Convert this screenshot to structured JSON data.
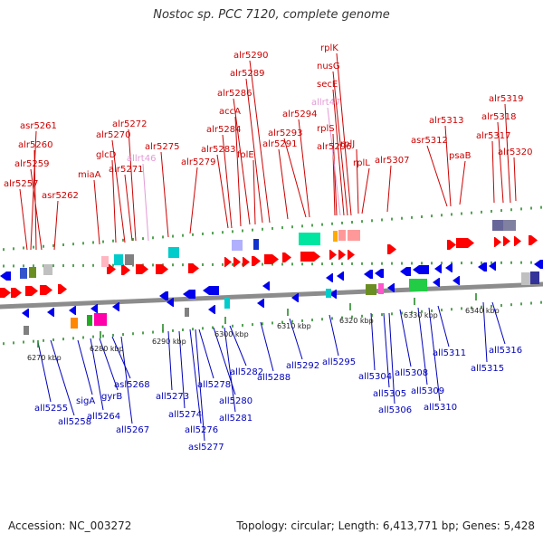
{
  "title": "Nostoc sp. PCC 7120, complete genome",
  "footer": {
    "accession": "Accession: NC_003272",
    "summary": "Topology: circular; Length: 6,413,771 bp; Genes: 5,428"
  },
  "colors": {
    "forward_label": "#cc0000",
    "forward_faded_label": "#e39ad6",
    "reverse_label": "#0000bb",
    "forward_arrow": "#ff0000",
    "reverse_arrow": "#0000ee",
    "axis": "#8c8c8c",
    "tick": "#2a8a2a"
  },
  "kbp_labels": [
    "6270 kbp",
    "6280 kbp",
    "6290 kbp",
    "6300 kbp",
    "6310 kbp",
    "6320 kbp",
    "6330 kbp",
    "6340 kbp"
  ],
  "top_labels": [
    "asr5261",
    "alr5260",
    "alr5259",
    "alr5257",
    "asr5262",
    "miaA",
    "glcD",
    "alr5270",
    "alr5272",
    "alr5271",
    "allrt46",
    "alr5275",
    "alr5279",
    "alr5283",
    "alr5284",
    "accA",
    "alr5286",
    "folE",
    "alr5289",
    "alr5290",
    "alr5291",
    "alr5293",
    "alr5294",
    "alr5296",
    "rplS",
    "allrt47",
    "secE",
    "nusG",
    "rplK",
    "rplJ",
    "rplL",
    "alr5307",
    "asr5312",
    "alr5313",
    "psaB",
    "alr5317",
    "alr5318",
    "alr5319",
    "alr5320"
  ],
  "bottom_labels": [
    "all5255",
    "all5258",
    "sigA",
    "all5264",
    "gyrB",
    "asl5268",
    "all5267",
    "all5273",
    "all5274",
    "all5276",
    "asl5277",
    "all5278",
    "all5280",
    "all5281",
    "all5282",
    "all5288",
    "all5292",
    "all5295",
    "all5304",
    "all5305",
    "all5306",
    "all5308",
    "all5309",
    "all5310",
    "all5311",
    "all5315",
    "all5316"
  ]
}
